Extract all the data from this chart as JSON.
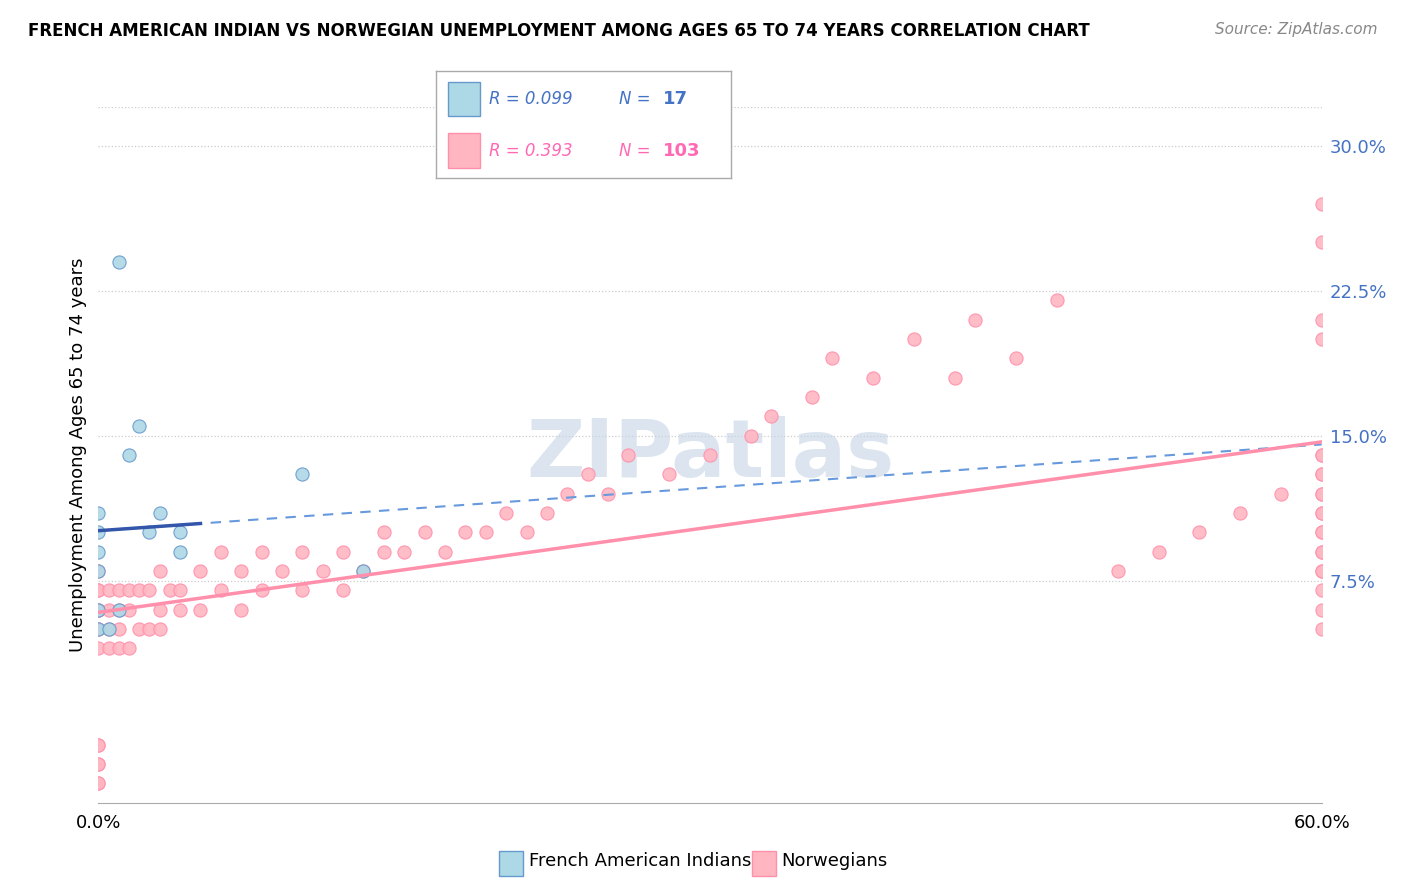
{
  "title": "FRENCH AMERICAN INDIAN VS NORWEGIAN UNEMPLOYMENT AMONG AGES 65 TO 74 YEARS CORRELATION CHART",
  "source": "Source: ZipAtlas.com",
  "ylabel": "Unemployment Among Ages 65 to 74 years",
  "xlim": [
    0.0,
    0.6
  ],
  "ylim": [
    -0.04,
    0.32
  ],
  "yticks_right": [
    0.075,
    0.15,
    0.225,
    0.3
  ],
  "ytick_labels_right": [
    "7.5%",
    "15.0%",
    "22.5%",
    "30.0%"
  ],
  "color_blue_fill": "#ADD8E6",
  "color_blue_edge": "#6699CC",
  "color_pink_fill": "#FFB6C1",
  "color_pink_edge": "#FF8FAB",
  "color_trendline_blue_dashed": "#6699DD",
  "color_trendline_blue_solid": "#3355AA",
  "color_trendline_pink": "#FF8FAB",
  "watermark_color": "#C8D8E8",
  "french_x": [
    0.0,
    0.0,
    0.0,
    0.0,
    0.0,
    0.0,
    0.005,
    0.01,
    0.01,
    0.015,
    0.02,
    0.025,
    0.03,
    0.04,
    0.04,
    0.1,
    0.13
  ],
  "french_y": [
    0.05,
    0.06,
    0.08,
    0.09,
    0.1,
    0.11,
    0.05,
    0.06,
    0.24,
    0.14,
    0.155,
    0.1,
    0.11,
    0.09,
    0.1,
    0.13,
    0.08
  ],
  "norwegian_x": [
    0.0,
    0.0,
    0.0,
    0.0,
    0.0,
    0.0,
    0.0,
    0.0,
    0.0,
    0.0,
    0.0,
    0.0,
    0.0,
    0.0,
    0.0,
    0.005,
    0.005,
    0.005,
    0.005,
    0.01,
    0.01,
    0.01,
    0.01,
    0.015,
    0.015,
    0.015,
    0.02,
    0.02,
    0.025,
    0.025,
    0.03,
    0.03,
    0.03,
    0.035,
    0.04,
    0.04,
    0.05,
    0.05,
    0.06,
    0.06,
    0.07,
    0.07,
    0.08,
    0.08,
    0.09,
    0.1,
    0.1,
    0.11,
    0.12,
    0.12,
    0.13,
    0.14,
    0.14,
    0.15,
    0.16,
    0.17,
    0.18,
    0.19,
    0.2,
    0.21,
    0.22,
    0.23,
    0.24,
    0.25,
    0.26,
    0.28,
    0.3,
    0.32,
    0.33,
    0.35,
    0.36,
    0.38,
    0.4,
    0.42,
    0.43,
    0.45,
    0.47,
    0.5,
    0.52,
    0.54,
    0.56,
    0.58,
    0.6,
    0.6,
    0.6,
    0.6,
    0.6,
    0.6,
    0.6,
    0.6,
    0.6,
    0.6,
    0.6,
    0.6,
    0.6,
    0.6,
    0.6,
    0.6,
    0.6,
    0.6,
    0.6,
    0.6,
    0.6
  ],
  "norwegian_y": [
    0.04,
    0.05,
    0.05,
    0.06,
    0.06,
    0.06,
    0.07,
    0.07,
    0.08,
    -0.01,
    -0.01,
    -0.02,
    -0.02,
    -0.03,
    -0.03,
    0.04,
    0.05,
    0.06,
    0.07,
    0.04,
    0.05,
    0.06,
    0.07,
    0.04,
    0.06,
    0.07,
    0.05,
    0.07,
    0.05,
    0.07,
    0.05,
    0.06,
    0.08,
    0.07,
    0.06,
    0.07,
    0.06,
    0.08,
    0.07,
    0.09,
    0.06,
    0.08,
    0.07,
    0.09,
    0.08,
    0.07,
    0.09,
    0.08,
    0.07,
    0.09,
    0.08,
    0.09,
    0.1,
    0.09,
    0.1,
    0.09,
    0.1,
    0.1,
    0.11,
    0.1,
    0.11,
    0.12,
    0.13,
    0.12,
    0.14,
    0.13,
    0.14,
    0.15,
    0.16,
    0.17,
    0.19,
    0.18,
    0.2,
    0.18,
    0.21,
    0.19,
    0.22,
    0.08,
    0.09,
    0.1,
    0.11,
    0.12,
    0.05,
    0.06,
    0.07,
    0.08,
    0.09,
    0.1,
    0.11,
    0.12,
    0.13,
    0.14,
    0.08,
    0.09,
    0.1,
    0.11,
    0.12,
    0.13,
    0.14,
    0.2,
    0.21,
    0.25,
    0.27
  ]
}
